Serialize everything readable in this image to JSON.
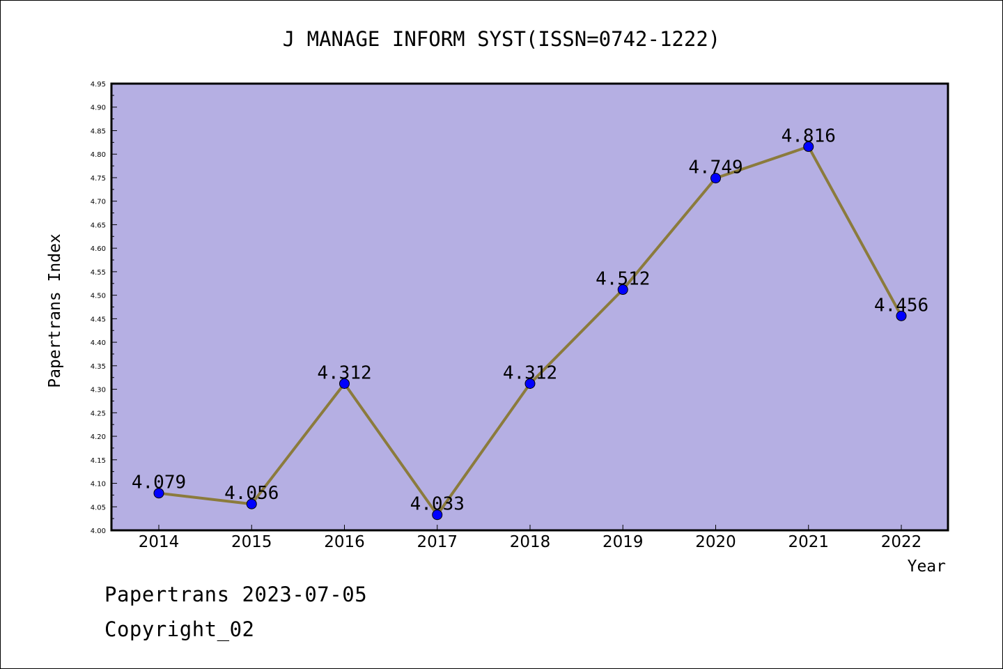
{
  "chart_data": {
    "type": "line",
    "title": "J MANAGE INFORM SYST(ISSN=0742-1222)",
    "xlabel": "Year",
    "ylabel": "Papertrans Index",
    "categories": [
      "2014",
      "2015",
      "2016",
      "2017",
      "2018",
      "2019",
      "2020",
      "2021",
      "2022"
    ],
    "series": [
      {
        "values": [
          4.079,
          4.056,
          4.312,
          4.033,
          4.312,
          4.512,
          4.749,
          4.816,
          4.456
        ],
        "data_labels": [
          "4.079",
          "4.056",
          "4.312",
          "4.033",
          "4.312",
          "4.512",
          "4.749",
          "4.816",
          "4.456"
        ]
      }
    ],
    "ylim": [
      4.0,
      4.95
    ],
    "yticks": [
      "4.00",
      "4.05",
      "4.10",
      "4.15",
      "4.20",
      "4.25",
      "4.30",
      "4.35",
      "4.40",
      "4.45",
      "4.50",
      "4.55",
      "4.60",
      "4.65",
      "4.70",
      "4.75",
      "4.80",
      "4.85",
      "4.90",
      "4.95"
    ],
    "grid": false,
    "colors": {
      "plot_background": "#b5afe3",
      "line": "#8b7b3c",
      "marker": "#0000ff"
    }
  },
  "footer": {
    "date_line": "Papertrans 2023-07-05",
    "copyright": "Copyright_02"
  }
}
